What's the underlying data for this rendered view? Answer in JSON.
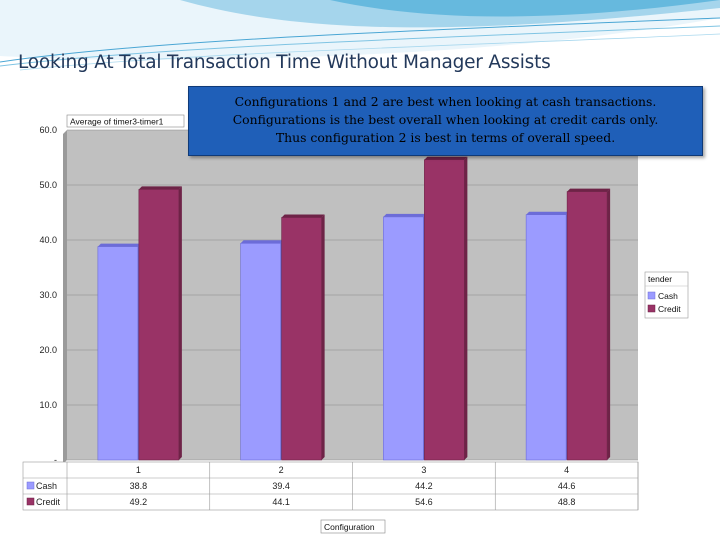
{
  "slide": {
    "title": "Looking At Total Transaction Time Without Manager Assists"
  },
  "callout": {
    "lines": [
      "Configurations 1 and 2 are best when looking at cash transactions.",
      "Configurations is the best overall when looking at credit cards only.",
      "Thus configuration 2 is best in terms of overall speed."
    ]
  },
  "colors": {
    "cash": "#9b9bff",
    "credit": "#993366",
    "plot_background": "#c0c0c0",
    "callout_background": "#1f5fb8",
    "title": "#23395b"
  },
  "chart_data": {
    "type": "bar",
    "title": "Average of timer3-timer1",
    "xlabel": "Configuration",
    "ylabel": "",
    "categories": [
      "1",
      "2",
      "3",
      "4"
    ],
    "series": [
      {
        "name": "Cash",
        "values": [
          38.8,
          39.4,
          44.2,
          44.6
        ],
        "labels": [
          "38.8",
          "39.4",
          "44.2",
          "44.6"
        ]
      },
      {
        "name": "Credit",
        "values": [
          49.2,
          44.1,
          54.6,
          48.8
        ],
        "labels": [
          "49.2",
          "44.1",
          "54.6",
          "48.8"
        ]
      }
    ],
    "ylim": [
      0,
      60
    ],
    "yticks": [
      0,
      10,
      20,
      30,
      40,
      50,
      60
    ],
    "ytick_labels": [
      "-",
      "10.0",
      "20.0",
      "30.0",
      "40.0",
      "50.0",
      "60.0"
    ],
    "legend_title": "tender",
    "legend_position": "right",
    "grid": true,
    "data_table": true
  }
}
